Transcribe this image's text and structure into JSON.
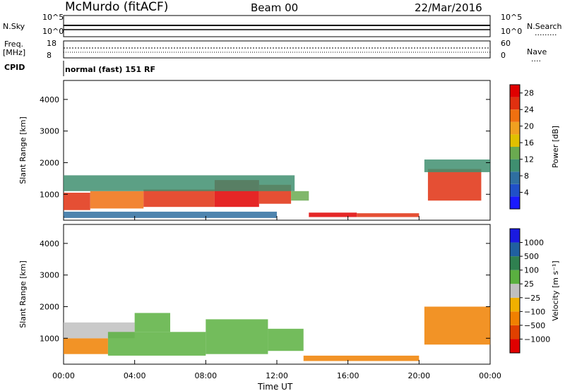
{
  "header": {
    "station": "McMurdo (fitACF)",
    "beam": "Beam 00",
    "date": "22/Mar/2016"
  },
  "strip": {
    "nsky_label": "N.Sky",
    "nsearch_label": "N.Search",
    "freq_label_1": "Freq.",
    "freq_label_2": "[MHz]",
    "nave_label": "Nave",
    "cpid_label": "CPID",
    "mode_text": "normal (fast) 151 RF",
    "left_ticks_top": [
      "10^5",
      "10^0"
    ],
    "right_ticks_top": [
      "10^5",
      "10^0"
    ],
    "freq_ticks": [
      "18",
      "8"
    ],
    "nave_ticks": [
      "60",
      "0"
    ]
  },
  "chart_data": [
    {
      "type": "heatmap",
      "title": "",
      "xlabel": "Time UT",
      "ylabel": "Slant Range [km]",
      "xlim_hours": [
        0,
        24
      ],
      "ylim": [
        180,
        4600
      ],
      "x_ticks": [
        "00:00",
        "04:00",
        "08:00",
        "12:00",
        "16:00",
        "20:00",
        "00:00"
      ],
      "y_ticks": [
        1000,
        2000,
        3000,
        4000
      ],
      "colorbar": {
        "label": "Power [dB]",
        "ticks": [
          4,
          8,
          12,
          16,
          20,
          24,
          28
        ],
        "colors": [
          "#1a1aff",
          "#2050c8",
          "#2f6fa0",
          "#3f8f70",
          "#6aaa50",
          "#e0c000",
          "#f0a020",
          "#f07010",
          "#e03010",
          "#e00000"
        ]
      },
      "regions": [
        {
          "t0": 0.0,
          "t1": 1.5,
          "r0": 500,
          "r1": 1050,
          "level": 26
        },
        {
          "t0": 1.5,
          "t1": 4.5,
          "r0": 550,
          "r1": 1100,
          "level": 22
        },
        {
          "t0": 4.5,
          "t1": 8.5,
          "r0": 600,
          "r1": 1150,
          "level": 26
        },
        {
          "t0": 8.5,
          "t1": 11.0,
          "r0": 600,
          "r1": 1450,
          "level": 28
        },
        {
          "t0": 11.0,
          "t1": 12.8,
          "r0": 700,
          "r1": 1300,
          "level": 25
        },
        {
          "t0": 12.8,
          "t1": 13.8,
          "r0": 800,
          "r1": 1100,
          "level": 12
        },
        {
          "t0": 13.8,
          "t1": 16.5,
          "r0": 280,
          "r1": 420,
          "level": 27
        },
        {
          "t0": 16.5,
          "t1": 20.0,
          "r0": 280,
          "r1": 400,
          "level": 24
        },
        {
          "t0": 20.5,
          "t1": 23.5,
          "r0": 800,
          "r1": 1800,
          "level": 24
        },
        {
          "t0": 0.0,
          "t1": 13.0,
          "r0": 1100,
          "r1": 1600,
          "level": 10
        },
        {
          "t0": 20.3,
          "t1": 24.0,
          "r0": 1700,
          "r1": 2100,
          "level": 10
        },
        {
          "t0": 0.0,
          "t1": 12.0,
          "r0": 250,
          "r1": 450,
          "level": 6
        }
      ]
    },
    {
      "type": "heatmap",
      "title": "",
      "xlabel": "Time UT",
      "ylabel": "Slant Range [km]",
      "xlim_hours": [
        0,
        24
      ],
      "ylim": [
        180,
        4600
      ],
      "x_ticks": [
        "00:00",
        "04:00",
        "08:00",
        "12:00",
        "16:00",
        "20:00",
        "00:00"
      ],
      "y_ticks": [
        1000,
        2000,
        3000,
        4000
      ],
      "colorbar": {
        "label": "Velocity [m s⁻¹]",
        "ticks": [
          "1000",
          "500",
          "100",
          "25",
          "−25",
          "−100",
          "−500",
          "−1000"
        ],
        "colors": [
          "#1a1ae0",
          "#2060a0",
          "#2f8050",
          "#5ab040",
          "#c0c0c0",
          "#f0b000",
          "#f08000",
          "#e04000",
          "#e00000"
        ]
      },
      "regions": [
        {
          "t0": 0.0,
          "t1": 2.5,
          "r0": 500,
          "r1": 1000,
          "level": -150
        },
        {
          "t0": 0.0,
          "t1": 4.0,
          "r0": 1000,
          "r1": 1500,
          "level": 0
        },
        {
          "t0": 2.5,
          "t1": 8.0,
          "r0": 450,
          "r1": 1200,
          "level": 80
        },
        {
          "t0": 8.0,
          "t1": 11.5,
          "r0": 500,
          "r1": 1600,
          "level": 90
        },
        {
          "t0": 11.5,
          "t1": 13.5,
          "r0": 600,
          "r1": 1300,
          "level": 40
        },
        {
          "t0": 13.5,
          "t1": 20.0,
          "r0": 280,
          "r1": 450,
          "level": -120
        },
        {
          "t0": 20.3,
          "t1": 24.0,
          "r0": 800,
          "r1": 2000,
          "level": -150
        },
        {
          "t0": 4.0,
          "t1": 6.0,
          "r0": 1200,
          "r1": 1800,
          "level": 30
        }
      ]
    }
  ]
}
